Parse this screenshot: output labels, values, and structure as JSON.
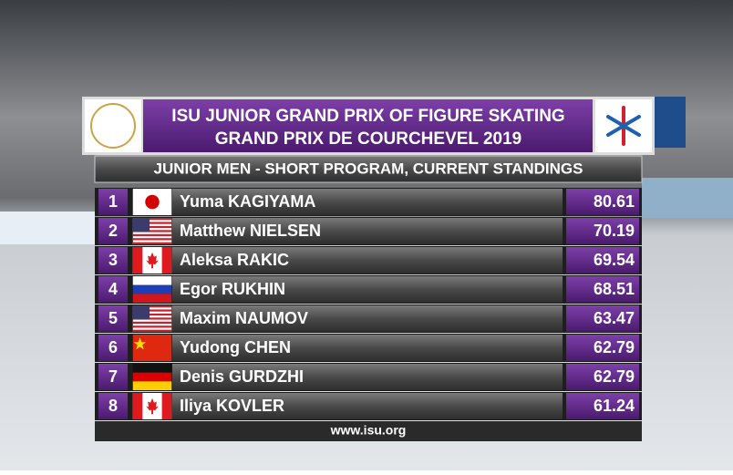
{
  "header": {
    "title_line1": "ISU JUNIOR GRAND PRIX OF FIGURE SKATING",
    "title_line2": "GRAND PRIX DE COURCHEVEL 2019"
  },
  "subtitle": "JUNIOR MEN - SHORT PROGRAM, CURRENT STANDINGS",
  "table": {
    "rows": [
      [
        "1",
        "Yuma KAGIYAMA",
        "80.61"
      ],
      [
        "2",
        "Matthew NIELSEN",
        "70.19"
      ],
      [
        "3",
        "Aleksa RAKIC",
        "69.54"
      ],
      [
        "4",
        "Egor RUKHIN",
        "68.51"
      ],
      [
        "5",
        "Maxim NAUMOV",
        "63.47"
      ],
      [
        "6",
        "Yudong CHEN",
        "62.79"
      ],
      [
        "7",
        "Denis GURDZHI",
        "62.79"
      ],
      [
        "8",
        "Iliya KOVLER",
        "61.24"
      ]
    ]
  },
  "footer": "www.isu.org"
}
